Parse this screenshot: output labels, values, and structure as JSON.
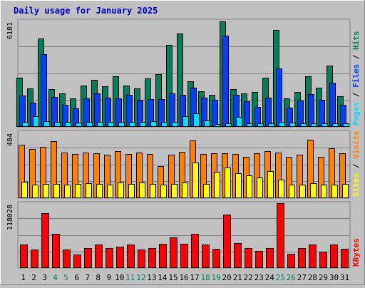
{
  "chart_data": {
    "type": "bar",
    "title": "Daily usage for January 2025",
    "x": [
      1,
      2,
      3,
      4,
      5,
      6,
      7,
      8,
      9,
      10,
      11,
      12,
      13,
      14,
      15,
      16,
      17,
      18,
      19,
      20,
      21,
      22,
      23,
      24,
      25,
      26,
      27,
      28,
      29,
      30,
      31
    ],
    "weekend_days": [
      4,
      5,
      11,
      12,
      18,
      19,
      25,
      26
    ],
    "panels": [
      {
        "id": "hits-panel",
        "ymax_label": "6181",
        "ymax": 6181,
        "series": [
          {
            "name": "Hits",
            "color": "#00805c",
            "values": [
              2880,
              2220,
              5160,
              2210,
              1940,
              1680,
              2400,
              2720,
              2380,
              2950,
              2400,
              2220,
              2820,
              3050,
              4760,
              5450,
              2640,
              2080,
              1880,
              6140,
              2210,
              1960,
              2050,
              2880,
              5630,
              1650,
              2050,
              2950,
              2280,
              3560,
              1780
            ]
          },
          {
            "name": "Files",
            "color": "#0040ff",
            "values": [
              1820,
              1430,
              4240,
              1740,
              1300,
              1080,
              1660,
              1940,
              1700,
              1640,
              1850,
              1560,
              1610,
              1600,
              1960,
              1880,
              2270,
              1720,
              1560,
              5320,
              1860,
              1500,
              1170,
              1700,
              3410,
              1130,
              1540,
              1890,
              1560,
              2560,
              1300
            ]
          },
          {
            "name": "Pages",
            "color": "#00e0ff",
            "values": [
              300,
              640,
              320,
              270,
              300,
              250,
              270,
              310,
              280,
              310,
              300,
              290,
              320,
              290,
              290,
              610,
              800,
              390,
              180,
              210,
              570,
              190,
              220,
              210,
              290,
              240,
              210,
              190,
              220,
              210,
              190
            ]
          }
        ]
      },
      {
        "id": "visits-panel",
        "ymax_label": "484",
        "ymax": 484,
        "series": [
          {
            "name": "Visits",
            "color": "#ff8000",
            "values": [
              390,
              360,
              375,
              415,
              335,
              325,
              335,
              330,
              315,
              345,
              325,
              335,
              325,
              235,
              320,
              340,
              420,
              325,
              330,
              330,
              325,
              300,
              330,
              345,
              335,
              300,
              320,
              425,
              300,
              365,
              330
            ]
          },
          {
            "name": "Sites",
            "color": "#ffff00",
            "values": [
              120,
              100,
              102,
              102,
              100,
              105,
              110,
              105,
              100,
              112,
              102,
              115,
              102,
              100,
              102,
              112,
              260,
              102,
              195,
              222,
              180,
              165,
              150,
              200,
              135,
              100,
              100,
              108,
              100,
              100,
              102
            ]
          }
        ]
      },
      {
        "id": "kbytes-panel",
        "ymax_label": "118028",
        "ymax": 118028,
        "series": [
          {
            "name": "KBytes",
            "color": "#ff0000",
            "values": [
              42300,
              33700,
              99500,
              62700,
              33700,
              25000,
              35900,
              42300,
              35900,
              38600,
              42300,
              34300,
              36500,
              44100,
              55800,
              44600,
              62300,
              43100,
              34400,
              97700,
              45100,
              35900,
              30800,
              35800,
              118028,
              26000,
              35900,
              43100,
              29700,
              43100,
              34400
            ]
          }
        ]
      }
    ]
  }
}
